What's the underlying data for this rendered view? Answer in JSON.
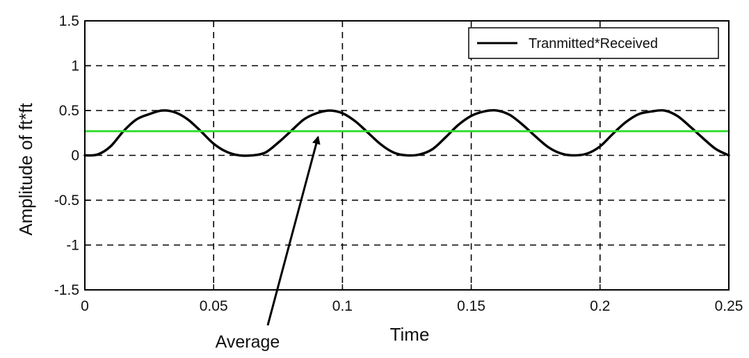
{
  "chart_data": {
    "type": "line",
    "title": "",
    "xlabel": "Time",
    "ylabel": "Amplitude of ft*ft",
    "xlim": [
      0,
      0.25
    ],
    "ylim": [
      -1.5,
      1.5
    ],
    "grid": true,
    "grid_style": "dashed",
    "legend_position": "top-right",
    "xticks": [
      0,
      0.05,
      0.1,
      0.15,
      0.2,
      0.25
    ],
    "xtick_labels": [
      "0",
      "0.05",
      "0.1",
      "0.15",
      "0.2",
      "0.25"
    ],
    "yticks": [
      1.5,
      1,
      0.5,
      0,
      -0.5,
      -1,
      -1.5
    ],
    "ytick_labels": [
      "1.5",
      "1",
      "0.5",
      "0",
      "-0.5",
      "-1",
      "-1.5"
    ],
    "series": [
      {
        "name": "Tranmitted*Received",
        "color": "#000000",
        "x": [
          0,
          0.005,
          0.01,
          0.015,
          0.02,
          0.025,
          0.03,
          0.035,
          0.04,
          0.045,
          0.05,
          0.055,
          0.06,
          0.065,
          0.07,
          0.075,
          0.08,
          0.085,
          0.09,
          0.095,
          0.1,
          0.105,
          0.11,
          0.115,
          0.12,
          0.125,
          0.13,
          0.135,
          0.14,
          0.145,
          0.15,
          0.155,
          0.16,
          0.165,
          0.17,
          0.175,
          0.18,
          0.185,
          0.19,
          0.195,
          0.2,
          0.205,
          0.21,
          0.215,
          0.22,
          0.225,
          0.23,
          0.235,
          0.24,
          0.245,
          0.25
        ],
        "y": [
          0.0,
          0.01,
          0.1,
          0.27,
          0.4,
          0.46,
          0.5,
          0.48,
          0.4,
          0.27,
          0.13,
          0.04,
          0.0,
          0.0,
          0.03,
          0.14,
          0.27,
          0.4,
          0.47,
          0.5,
          0.47,
          0.38,
          0.25,
          0.12,
          0.03,
          0.0,
          0.01,
          0.07,
          0.2,
          0.34,
          0.44,
          0.49,
          0.5,
          0.45,
          0.34,
          0.21,
          0.09,
          0.02,
          0.0,
          0.02,
          0.1,
          0.24,
          0.37,
          0.46,
          0.49,
          0.5,
          0.44,
          0.32,
          0.19,
          0.07,
          0.0
        ]
      },
      {
        "color": "#33dd33",
        "x": [
          0,
          0.25
        ],
        "y": [
          0.27,
          0.27
        ]
      }
    ],
    "annotations": [
      {
        "text": "Average",
        "arrow_to": {
          "x": 0.09,
          "y": 0.22
        }
      }
    ]
  }
}
